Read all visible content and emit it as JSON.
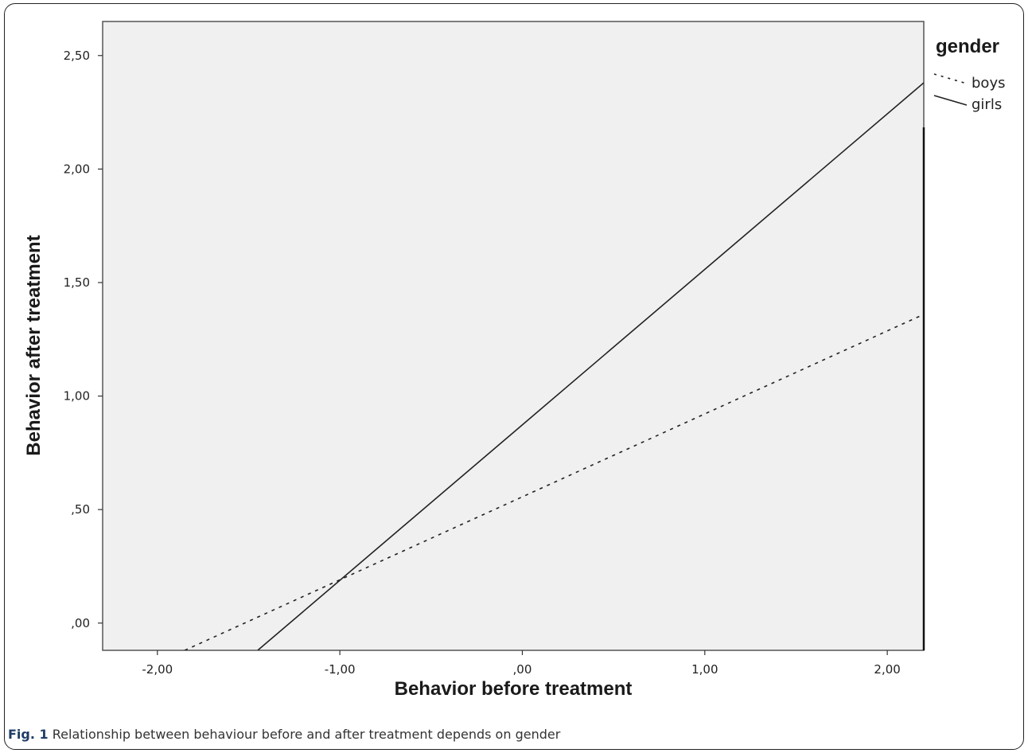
{
  "chart_data": {
    "type": "line",
    "xlabel": "Behavior before treatment",
    "ylabel": "Behavior after treatment",
    "xlim": [
      -2.3,
      2.2
    ],
    "ylim": [
      -0.12,
      2.65
    ],
    "x_ticks": [
      -2,
      -1,
      0,
      1,
      2
    ],
    "x_tick_labels": [
      "-2,00",
      "-1,00",
      ",00",
      "1,00",
      "2,00"
    ],
    "y_ticks": [
      0,
      0.5,
      1,
      1.5,
      2,
      2.5
    ],
    "y_tick_labels": [
      ",00",
      ",50",
      "1,00",
      "1,50",
      "2,00",
      "2,50"
    ],
    "grid": false,
    "legend": {
      "title": "gender",
      "placement": "right"
    },
    "series": [
      {
        "name": "boys",
        "style": "dashed",
        "points": [
          [
            -1.85,
            -0.12
          ],
          [
            2.2,
            1.36
          ]
        ]
      },
      {
        "name": "girls",
        "style": "solid",
        "points": [
          [
            -1.45,
            -0.12
          ],
          [
            2.2,
            2.38
          ]
        ]
      }
    ]
  },
  "caption": {
    "label": "Fig. 1",
    "text": "Relationship between behaviour before and after treatment depends on gender"
  },
  "colors": {
    "plot_background": "#f0f0f0",
    "line": "#222222",
    "caption_label": "#1f3d66"
  }
}
